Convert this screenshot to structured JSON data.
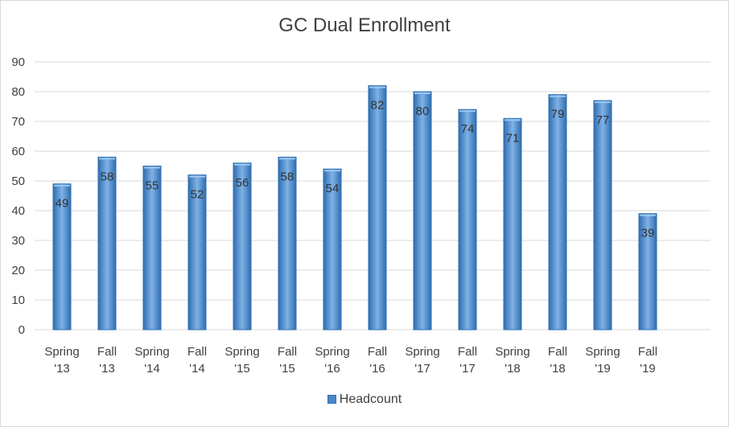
{
  "chart_data": {
    "type": "bar",
    "title": "GC Dual Enrollment",
    "categories": [
      [
        "Spring",
        "'13"
      ],
      [
        "Fall",
        "'13"
      ],
      [
        "Spring",
        "'14"
      ],
      [
        "Fall",
        "'14"
      ],
      [
        "Spring",
        "'15"
      ],
      [
        "Fall",
        "'15"
      ],
      [
        "Spring",
        "'16"
      ],
      [
        "Fall",
        "'16"
      ],
      [
        "Spring",
        "'17"
      ],
      [
        "Fall",
        "'17"
      ],
      [
        "Spring",
        "'18"
      ],
      [
        "Fall",
        "'18"
      ],
      [
        "Spring",
        "'19"
      ],
      [
        "Fall",
        "'19"
      ]
    ],
    "series": [
      {
        "name": "Headcount",
        "values": [
          49,
          58,
          55,
          52,
          56,
          58,
          54,
          82,
          80,
          74,
          71,
          79,
          77,
          39
        ]
      }
    ],
    "ylim": [
      0,
      90
    ],
    "yticks": [
      0,
      10,
      20,
      30,
      40,
      50,
      60,
      70,
      80,
      90
    ],
    "xlabel": "",
    "ylabel": "",
    "grid": true,
    "legend_position": "bottom",
    "colors": {
      "bar": "#4a86c8",
      "bar_edge": "#2e6fb0",
      "grid": "#d9d9d9"
    }
  }
}
